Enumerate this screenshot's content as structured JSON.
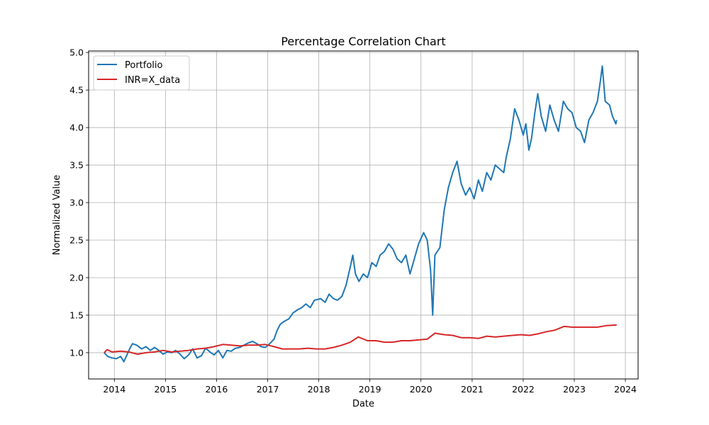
{
  "chart_data": {
    "type": "line",
    "title": "Percentage Correlation Chart",
    "xlabel": "Date",
    "ylabel": "Normalized Value",
    "x_ticks": [
      "2014",
      "2015",
      "2016",
      "2017",
      "2018",
      "2019",
      "2020",
      "2021",
      "2022",
      "2023",
      "2024"
    ],
    "y_ticks": [
      "1.0",
      "1.5",
      "2.0",
      "2.5",
      "3.0",
      "3.5",
      "4.0",
      "4.5",
      "5.0"
    ],
    "xlim": [
      "2013-07-01",
      "2024-04-01"
    ],
    "ylim": [
      0.65,
      5.02
    ],
    "grid": true,
    "legend_position": "top-left",
    "series": [
      {
        "name": "Portfolio",
        "color": "#1f77b4",
        "points": [
          [
            "2013-10-20",
            1.0
          ],
          [
            "2013-11-15",
            0.95
          ],
          [
            "2013-12-15",
            0.93
          ],
          [
            "2014-01-15",
            0.92
          ],
          [
            "2014-02-15",
            0.95
          ],
          [
            "2014-03-10",
            0.88
          ],
          [
            "2014-04-01",
            0.97
          ],
          [
            "2014-04-20",
            1.05
          ],
          [
            "2014-05-10",
            1.12
          ],
          [
            "2014-06-10",
            1.1
          ],
          [
            "2014-07-15",
            1.05
          ],
          [
            "2014-08-15",
            1.08
          ],
          [
            "2014-09-15",
            1.03
          ],
          [
            "2014-10-15",
            1.07
          ],
          [
            "2014-11-15",
            1.03
          ],
          [
            "2014-12-15",
            0.98
          ],
          [
            "2015-01-15",
            1.01
          ],
          [
            "2015-02-15",
            1.0
          ],
          [
            "2015-03-15",
            1.03
          ],
          [
            "2015-04-15",
            0.98
          ],
          [
            "2015-05-15",
            0.92
          ],
          [
            "2015-06-15",
            0.97
          ],
          [
            "2015-07-15",
            1.05
          ],
          [
            "2015-08-15",
            0.93
          ],
          [
            "2015-09-15",
            0.96
          ],
          [
            "2015-10-15",
            1.06
          ],
          [
            "2015-11-15",
            1.01
          ],
          [
            "2015-12-15",
            0.97
          ],
          [
            "2016-01-15",
            1.03
          ],
          [
            "2016-02-15",
            0.93
          ],
          [
            "2016-03-15",
            1.03
          ],
          [
            "2016-04-15",
            1.02
          ],
          [
            "2016-05-15",
            1.06
          ],
          [
            "2016-06-15",
            1.07
          ],
          [
            "2016-07-15",
            1.1
          ],
          [
            "2016-08-15",
            1.13
          ],
          [
            "2016-09-15",
            1.15
          ],
          [
            "2016-10-15",
            1.12
          ],
          [
            "2016-11-15",
            1.08
          ],
          [
            "2016-12-15",
            1.07
          ],
          [
            "2017-01-15",
            1.12
          ],
          [
            "2017-02-15",
            1.18
          ],
          [
            "2017-03-10",
            1.3
          ],
          [
            "2017-04-01",
            1.38
          ],
          [
            "2017-05-01",
            1.42
          ],
          [
            "2017-06-01",
            1.45
          ],
          [
            "2017-07-01",
            1.53
          ],
          [
            "2017-08-01",
            1.57
          ],
          [
            "2017-09-01",
            1.6
          ],
          [
            "2017-10-01",
            1.65
          ],
          [
            "2017-11-01",
            1.6
          ],
          [
            "2017-12-01",
            1.7
          ],
          [
            "2018-01-15",
            1.72
          ],
          [
            "2018-02-15",
            1.67
          ],
          [
            "2018-03-15",
            1.78
          ],
          [
            "2018-04-15",
            1.72
          ],
          [
            "2018-05-15",
            1.7
          ],
          [
            "2018-06-15",
            1.75
          ],
          [
            "2018-07-15",
            1.9
          ],
          [
            "2018-08-15",
            2.15
          ],
          [
            "2018-09-01",
            2.3
          ],
          [
            "2018-09-20",
            2.05
          ],
          [
            "2018-10-15",
            1.95
          ],
          [
            "2018-11-15",
            2.05
          ],
          [
            "2018-12-15",
            2.0
          ],
          [
            "2019-01-15",
            2.2
          ],
          [
            "2019-02-15",
            2.15
          ],
          [
            "2019-03-15",
            2.3
          ],
          [
            "2019-04-15",
            2.35
          ],
          [
            "2019-05-15",
            2.45
          ],
          [
            "2019-06-15",
            2.38
          ],
          [
            "2019-07-15",
            2.25
          ],
          [
            "2019-08-15",
            2.2
          ],
          [
            "2019-09-15",
            2.3
          ],
          [
            "2019-10-15",
            2.05
          ],
          [
            "2019-11-15",
            2.25
          ],
          [
            "2019-12-15",
            2.45
          ],
          [
            "2020-01-20",
            2.6
          ],
          [
            "2020-02-15",
            2.5
          ],
          [
            "2020-03-10",
            2.1
          ],
          [
            "2020-03-25",
            1.5
          ],
          [
            "2020-04-10",
            2.3
          ],
          [
            "2020-05-15",
            2.4
          ],
          [
            "2020-06-15",
            2.9
          ],
          [
            "2020-07-15",
            3.2
          ],
          [
            "2020-08-15",
            3.4
          ],
          [
            "2020-09-15",
            3.55
          ],
          [
            "2020-10-15",
            3.25
          ],
          [
            "2020-11-15",
            3.1
          ],
          [
            "2020-12-15",
            3.2
          ],
          [
            "2021-01-15",
            3.05
          ],
          [
            "2021-02-15",
            3.3
          ],
          [
            "2021-03-15",
            3.15
          ],
          [
            "2021-04-15",
            3.4
          ],
          [
            "2021-05-15",
            3.3
          ],
          [
            "2021-06-15",
            3.5
          ],
          [
            "2021-07-15",
            3.45
          ],
          [
            "2021-08-15",
            3.4
          ],
          [
            "2021-09-01",
            3.6
          ],
          [
            "2021-10-01",
            3.85
          ],
          [
            "2021-11-01",
            4.25
          ],
          [
            "2021-12-01",
            4.1
          ],
          [
            "2022-01-01",
            3.9
          ],
          [
            "2022-01-20",
            4.05
          ],
          [
            "2022-02-10",
            3.7
          ],
          [
            "2022-03-01",
            3.85
          ],
          [
            "2022-03-25",
            4.2
          ],
          [
            "2022-04-15",
            4.45
          ],
          [
            "2022-05-10",
            4.15
          ],
          [
            "2022-06-10",
            3.95
          ],
          [
            "2022-07-10",
            4.3
          ],
          [
            "2022-08-10",
            4.1
          ],
          [
            "2022-09-10",
            3.95
          ],
          [
            "2022-10-15",
            4.35
          ],
          [
            "2022-11-15",
            4.25
          ],
          [
            "2022-12-15",
            4.2
          ],
          [
            "2023-01-15",
            4.0
          ],
          [
            "2023-02-15",
            3.95
          ],
          [
            "2023-03-15",
            3.8
          ],
          [
            "2023-04-15",
            4.1
          ],
          [
            "2023-05-15",
            4.2
          ],
          [
            "2023-06-15",
            4.35
          ],
          [
            "2023-07-05",
            4.6
          ],
          [
            "2023-07-20",
            4.82
          ],
          [
            "2023-08-10",
            4.35
          ],
          [
            "2023-09-10",
            4.3
          ],
          [
            "2023-10-01",
            4.15
          ],
          [
            "2023-10-25",
            4.05
          ],
          [
            "2023-10-31",
            4.1
          ]
        ]
      },
      {
        "name": "INR=X_data",
        "color": "#d62728",
        "points": [
          [
            "2013-10-20",
            1.0
          ],
          [
            "2013-11-10",
            1.04
          ],
          [
            "2013-12-15",
            1.01
          ],
          [
            "2014-02-15",
            1.02
          ],
          [
            "2014-04-15",
            1.01
          ],
          [
            "2014-06-15",
            0.98
          ],
          [
            "2014-08-15",
            1.0
          ],
          [
            "2014-10-15",
            1.01
          ],
          [
            "2014-12-15",
            1.03
          ],
          [
            "2015-02-15",
            1.01
          ],
          [
            "2015-04-15",
            1.02
          ],
          [
            "2015-06-15",
            1.03
          ],
          [
            "2015-08-15",
            1.05
          ],
          [
            "2015-10-15",
            1.06
          ],
          [
            "2015-12-15",
            1.08
          ],
          [
            "2016-02-15",
            1.11
          ],
          [
            "2016-04-15",
            1.1
          ],
          [
            "2016-06-15",
            1.09
          ],
          [
            "2016-08-15",
            1.1
          ],
          [
            "2016-10-15",
            1.1
          ],
          [
            "2016-12-15",
            1.11
          ],
          [
            "2017-02-15",
            1.08
          ],
          [
            "2017-04-15",
            1.05
          ],
          [
            "2017-06-15",
            1.05
          ],
          [
            "2017-08-15",
            1.05
          ],
          [
            "2017-10-15",
            1.06
          ],
          [
            "2017-12-15",
            1.05
          ],
          [
            "2018-02-15",
            1.05
          ],
          [
            "2018-04-15",
            1.07
          ],
          [
            "2018-06-15",
            1.1
          ],
          [
            "2018-08-15",
            1.14
          ],
          [
            "2018-10-10",
            1.21
          ],
          [
            "2018-12-15",
            1.16
          ],
          [
            "2019-02-15",
            1.16
          ],
          [
            "2019-04-15",
            1.14
          ],
          [
            "2019-06-15",
            1.14
          ],
          [
            "2019-08-15",
            1.16
          ],
          [
            "2019-10-15",
            1.16
          ],
          [
            "2019-12-15",
            1.17
          ],
          [
            "2020-02-15",
            1.18
          ],
          [
            "2020-04-10",
            1.26
          ],
          [
            "2020-06-15",
            1.24
          ],
          [
            "2020-08-15",
            1.23
          ],
          [
            "2020-10-15",
            1.2
          ],
          [
            "2020-12-15",
            1.2
          ],
          [
            "2021-02-15",
            1.19
          ],
          [
            "2021-04-15",
            1.22
          ],
          [
            "2021-06-15",
            1.21
          ],
          [
            "2021-08-15",
            1.22
          ],
          [
            "2021-10-15",
            1.23
          ],
          [
            "2021-12-15",
            1.24
          ],
          [
            "2022-02-15",
            1.23
          ],
          [
            "2022-04-15",
            1.25
          ],
          [
            "2022-06-15",
            1.28
          ],
          [
            "2022-08-15",
            1.3
          ],
          [
            "2022-10-20",
            1.35
          ],
          [
            "2022-12-15",
            1.34
          ],
          [
            "2023-02-15",
            1.34
          ],
          [
            "2023-04-15",
            1.34
          ],
          [
            "2023-06-15",
            1.34
          ],
          [
            "2023-08-15",
            1.36
          ],
          [
            "2023-10-31",
            1.37
          ]
        ]
      }
    ]
  }
}
